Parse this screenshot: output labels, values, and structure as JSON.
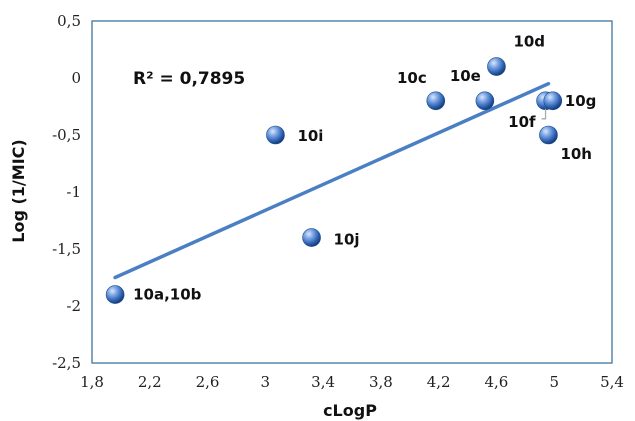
{
  "chart_data": {
    "type": "scatter",
    "xlabel": "cLogP",
    "ylabel": "Log (1/MIC)",
    "xlim": [
      1.8,
      5.4
    ],
    "ylim": [
      -2.5,
      0.5
    ],
    "x_ticks": [
      "1,8",
      "2,2",
      "2,6",
      "3",
      "3,4",
      "3,8",
      "4,2",
      "4,6",
      "5",
      "5,4"
    ],
    "y_ticks": [
      "0,5",
      "0",
      "-0,5",
      "-1",
      "-1,5",
      "-2",
      "-2,5"
    ],
    "annotation": "R² = 0,7895",
    "accent_color": "#4472C4",
    "points": [
      {
        "label": "10a,10b",
        "x": 1.96,
        "y": -1.9
      },
      {
        "label": "10c",
        "x": 4.18,
        "y": -0.2
      },
      {
        "label": "10d",
        "x": 4.6,
        "y": 0.1
      },
      {
        "label": "10e",
        "x": 4.52,
        "y": -0.2
      },
      {
        "label": "10f",
        "x": 4.94,
        "y": -0.2
      },
      {
        "label": "10g",
        "x": 4.99,
        "y": -0.2
      },
      {
        "label": "10h",
        "x": 4.96,
        "y": -0.5
      },
      {
        "label": "10i",
        "x": 3.07,
        "y": -0.5
      },
      {
        "label": "10j",
        "x": 3.32,
        "y": -1.4
      }
    ],
    "trendline": {
      "x": [
        1.96,
        4.96
      ],
      "y": [
        -1.75,
        -0.05
      ]
    }
  }
}
